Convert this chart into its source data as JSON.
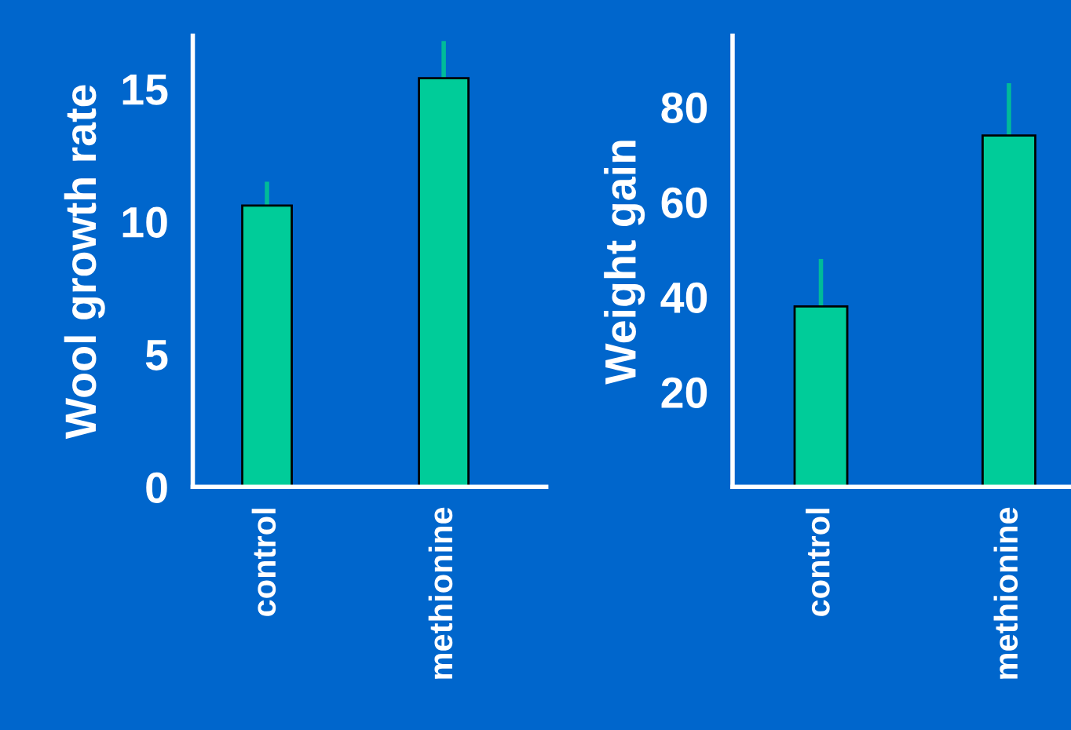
{
  "chart_data": [
    {
      "type": "bar",
      "ylabel": "Wool growth rate",
      "categories": [
        "control",
        "methionine"
      ],
      "values": [
        10.6,
        15.4
      ],
      "colors": [
        "#00cc99",
        "#00cc99"
      ],
      "errors": [
        [
          10.6,
          11.5
        ],
        [
          15.4,
          16.8
        ]
      ],
      "ylim": [
        0,
        17
      ],
      "yticks": [
        0,
        5,
        10,
        15
      ],
      "grid": false
    },
    {
      "type": "bar",
      "ylabel": "Weight gain",
      "categories": [
        "control",
        "methionine"
      ],
      "values": [
        38,
        74
      ],
      "colors": [
        "#00cc99",
        "#00cc99"
      ],
      "errors": [
        [
          38,
          48
        ],
        [
          74,
          85
        ]
      ],
      "ylim": [
        0,
        95
      ],
      "yticks": [
        20,
        40,
        60,
        80
      ],
      "grid": false
    }
  ]
}
